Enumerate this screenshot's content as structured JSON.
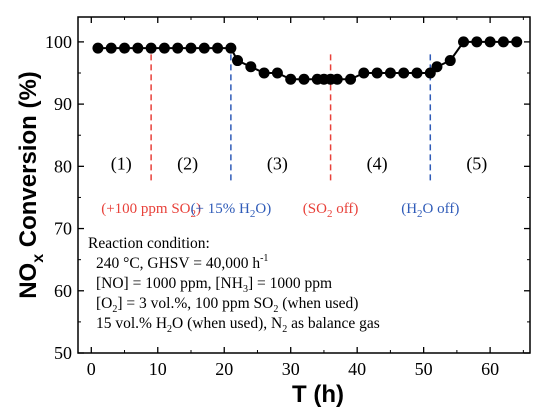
{
  "chart_data": {
    "type": "scatter",
    "xlabel": "T (h)",
    "ylabel_main": "NO",
    "ylabel_sub": "x",
    "ylabel_rest": " Conversion (%)",
    "xlim": [
      -2,
      66
    ],
    "ylim": [
      50,
      104
    ],
    "xticks": [
      0,
      10,
      20,
      30,
      40,
      50,
      60
    ],
    "yticks": [
      50,
      60,
      70,
      80,
      90,
      100
    ],
    "x": [
      1,
      3,
      5,
      7,
      9,
      11,
      13,
      15,
      17,
      19,
      21,
      22,
      24,
      26,
      28,
      30,
      32,
      34,
      35,
      36,
      37,
      39,
      41,
      43,
      45,
      47,
      49,
      51,
      52,
      54,
      56,
      58,
      60,
      62,
      64
    ],
    "y": [
      99,
      99,
      99,
      99,
      99,
      99,
      99,
      99,
      99,
      99,
      99,
      97,
      96,
      95,
      95,
      94,
      94,
      94,
      94,
      94,
      94,
      94,
      95,
      95,
      95,
      95,
      95,
      95,
      96,
      97,
      100,
      100,
      100,
      100,
      100
    ],
    "stages": [
      {
        "label": "(1)",
        "x": 4.5
      },
      {
        "label": "(2)",
        "x": 14.5
      },
      {
        "label": "(3)",
        "x": 28
      },
      {
        "label": "(4)",
        "x": 43
      },
      {
        "label": "(5)",
        "x": 58
      }
    ],
    "events": [
      {
        "x": 9,
        "color": "#e8413a",
        "label": "(+100 ppm SO",
        "sub": "2",
        "tail": ")"
      },
      {
        "x": 21,
        "color": "#2f5bb8",
        "label": "(+ 15% H",
        "sub": "2",
        "tail": "O)"
      },
      {
        "x": 36,
        "color": "#e8413a",
        "label": "(SO",
        "sub": "2",
        "tail": " off)"
      },
      {
        "x": 51,
        "color": "#2f5bb8",
        "label": "(H",
        "sub": "2",
        "tail": "O off)"
      }
    ],
    "annotation": [
      {
        "text": "Reaction condition:"
      },
      {
        "text": "240 °C, GHSV = 40,000 h",
        "sup": "-1"
      },
      {
        "text": "[NO] = 1000 ppm, [NH",
        "sub": "3",
        "tail": "] = 1000 ppm"
      },
      {
        "text": "[O",
        "sub": "2",
        "tail": "] = 3 vol.%, 100 ppm SO",
        "sub2": "2",
        "tail2": " (when used)"
      },
      {
        "text": "15 vol.% H",
        "sub": "2",
        "tail": "O  (when used), N",
        "sub2": "2",
        "tail2": " as balance gas"
      }
    ]
  }
}
